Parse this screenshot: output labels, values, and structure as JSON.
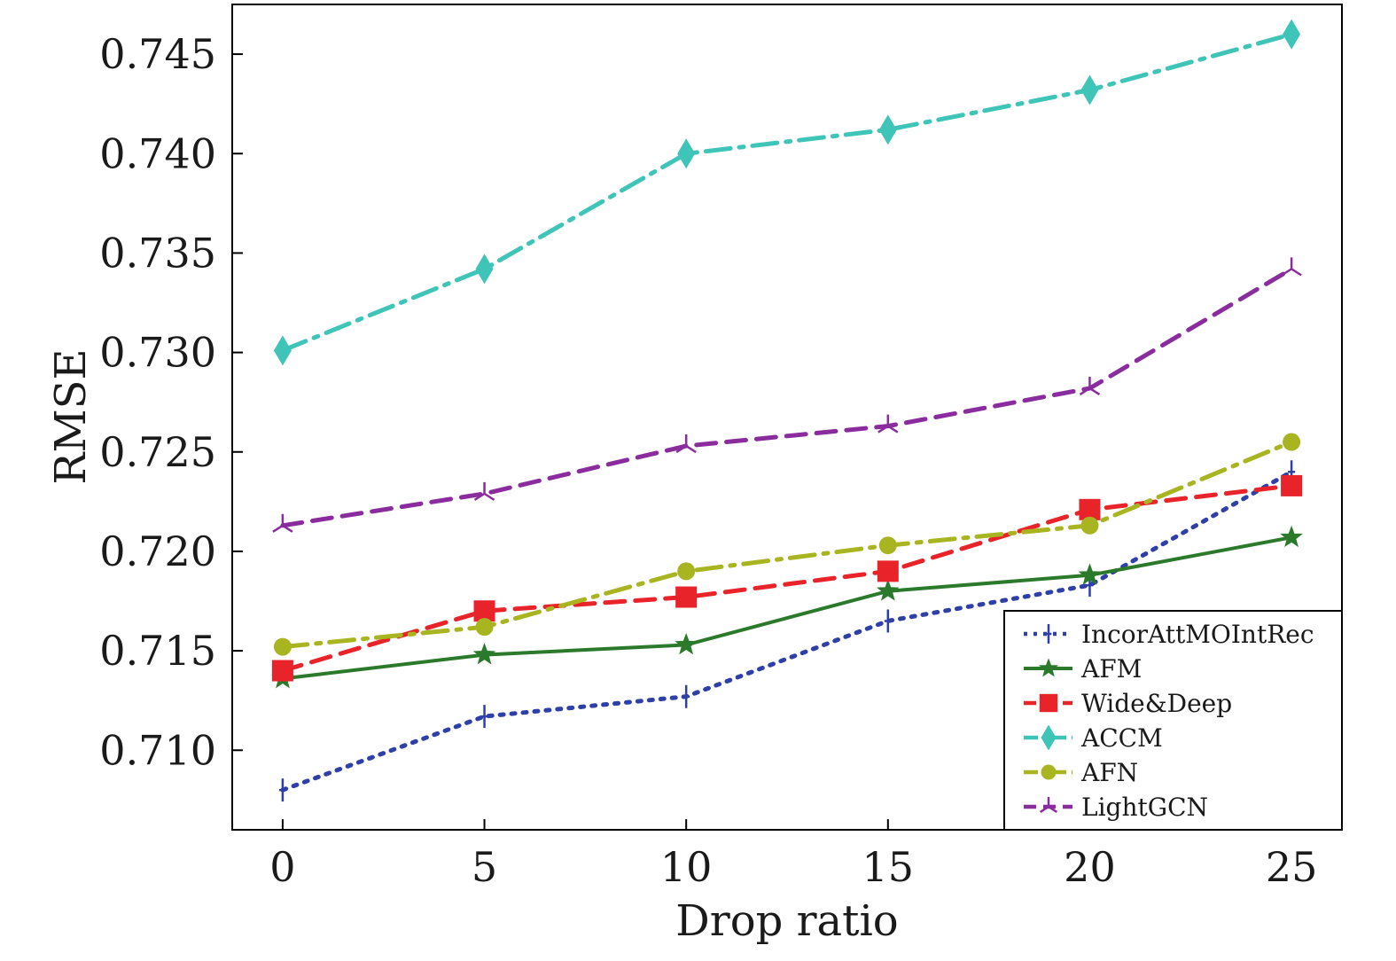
{
  "chart_data": {
    "type": "line",
    "xlabel": "Drop ratio",
    "ylabel": "RMSE",
    "x": [
      0,
      5,
      10,
      15,
      20,
      25
    ],
    "xticks": [
      "0",
      "5",
      "10",
      "15",
      "20",
      "25"
    ],
    "yticks": [
      "0.710",
      "0.715",
      "0.720",
      "0.725",
      "0.730",
      "0.735",
      "0.740",
      "0.745"
    ],
    "xlim": [
      -1.25,
      26.25
    ],
    "ylim": [
      0.706,
      0.7475
    ],
    "legend_position": "bottom-right",
    "series": [
      {
        "name": "IncorAttMOIntRec",
        "values": [
          0.708,
          0.7117,
          0.7127,
          0.7165,
          0.7183,
          0.724
        ],
        "color": "#2e3fa8",
        "line_style": "dotted",
        "marker": "plus"
      },
      {
        "name": "AFM",
        "values": [
          0.7136,
          0.7148,
          0.7153,
          0.718,
          0.7188,
          0.7207
        ],
        "color": "#2b7a2b",
        "line_style": "solid",
        "marker": "star"
      },
      {
        "name": "Wide&Deep",
        "values": [
          0.714,
          0.717,
          0.7177,
          0.719,
          0.7221,
          0.7233
        ],
        "color": "#e8232a",
        "line_style": "dashed",
        "marker": "square"
      },
      {
        "name": "ACCM",
        "values": [
          0.7301,
          0.7342,
          0.74,
          0.7412,
          0.7432,
          0.746
        ],
        "color": "#3fc4b8",
        "line_style": "dash-dot",
        "marker": "diamond"
      },
      {
        "name": "AFN",
        "values": [
          0.7152,
          0.7162,
          0.719,
          0.7203,
          0.7213,
          0.7255
        ],
        "color": "#a9b520",
        "line_style": "dash-dot",
        "marker": "circle"
      },
      {
        "name": "LightGCN",
        "values": [
          0.7213,
          0.7229,
          0.7253,
          0.7263,
          0.7282,
          0.7342
        ],
        "color": "#8a2c9e",
        "line_style": "dashed",
        "marker": "tri"
      }
    ]
  }
}
